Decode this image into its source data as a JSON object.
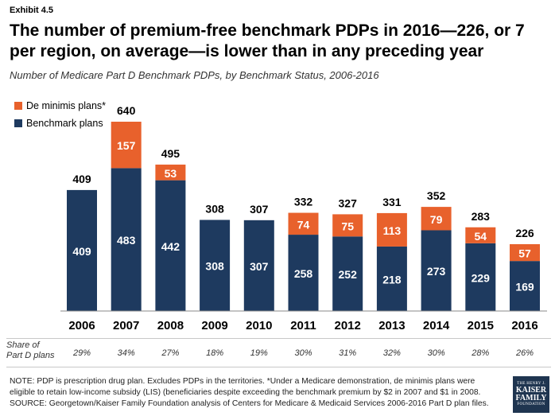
{
  "header": {
    "exhibit": "Exhibit 4.5",
    "title": "The number of premium-free benchmark PDPs in 2016—226, or 7 per region, on average—is lower than in any preceding year",
    "subtitle": "Number of Medicare Part D Benchmark PDPs, by Benchmark Status, 2006-2016"
  },
  "colors": {
    "benchmark": "#1e3a5f",
    "deminimis": "#e8612c"
  },
  "legend": {
    "deminimis": "De minimis plans*",
    "benchmark": "Benchmark plans"
  },
  "share": {
    "label_line1": "Share of",
    "label_line2": "Part D plans",
    "values": [
      "29%",
      "34%",
      "27%",
      "18%",
      "19%",
      "30%",
      "31%",
      "32%",
      "30%",
      "28%",
      "26%"
    ]
  },
  "chart_data": {
    "type": "bar",
    "stacked": true,
    "categories": [
      "2006",
      "2007",
      "2008",
      "2009",
      "2010",
      "2011",
      "2012",
      "2013",
      "2014",
      "2015",
      "2016"
    ],
    "series": [
      {
        "name": "Benchmark plans",
        "values": [
          409,
          483,
          442,
          308,
          307,
          258,
          252,
          218,
          273,
          229,
          169
        ]
      },
      {
        "name": "De minimis plans*",
        "values": [
          0,
          157,
          53,
          0,
          0,
          74,
          75,
          113,
          79,
          54,
          57
        ]
      }
    ],
    "totals": [
      409,
      640,
      495,
      308,
      307,
      332,
      327,
      331,
      352,
      283,
      226
    ],
    "ylim": [
      0,
      640
    ],
    "legend_position": "top-left",
    "grid": false
  },
  "footer": {
    "note_line1": "NOTE: PDP is prescription drug plan. Excludes PDPs in the territories. *Under a Medicare demonstration, de minimis plans were",
    "note_line2": "eligible to retain low-income subsidy (LIS) (beneficiaries despite exceeding the benchmark premium by $2 in 2007 and $1 in 2008.",
    "source": "SOURCE: Georgetown/Kaiser Family Foundation analysis of Centers for Medicare & Medicaid Services 2006-2016 Part D plan files."
  },
  "logo": {
    "line1": "THE HENRY J.",
    "line2": "KAISER",
    "line3": "FAMILY",
    "line4": "FOUNDATION"
  }
}
